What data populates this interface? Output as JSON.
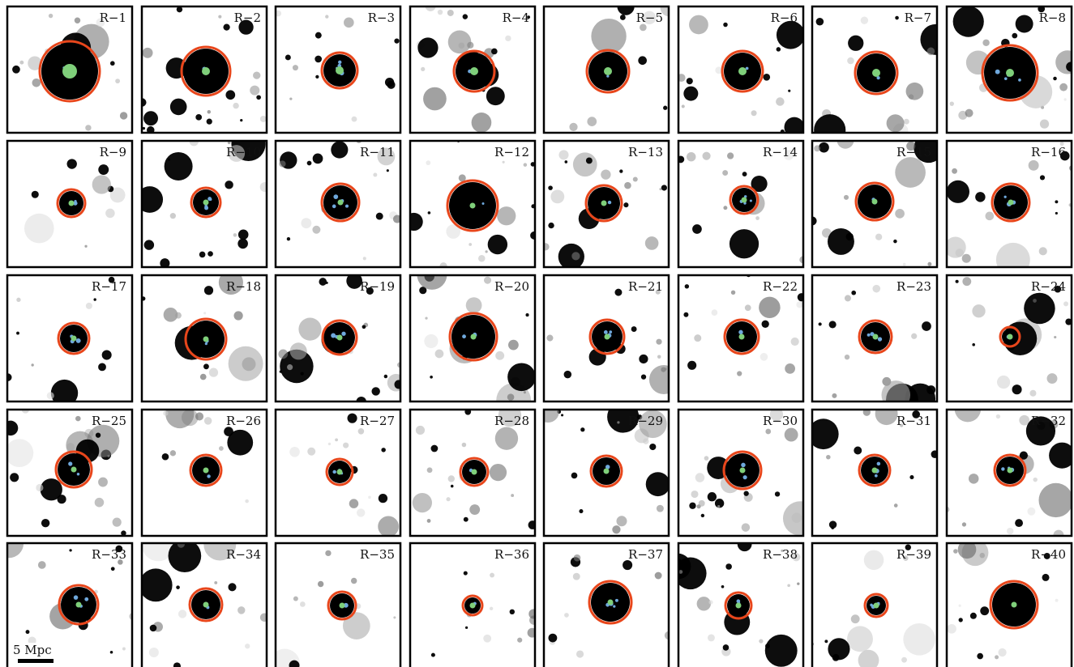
{
  "figure": {
    "panel_labels": [
      "R−1",
      "R−2",
      "R−3",
      "R−4",
      "R−5",
      "R−6",
      "R−7",
      "R−8",
      "R−9",
      "R−10",
      "R−11",
      "R−12",
      "R−13",
      "R−14",
      "R−15",
      "R−16",
      "R−17",
      "R−18",
      "R−19",
      "R−20",
      "R−21",
      "R−22",
      "R−23",
      "R−24",
      "R−25",
      "R−26",
      "R−27",
      "R−28",
      "R−29",
      "R−30",
      "R−31",
      "R−32",
      "R−33",
      "R−34",
      "R−35",
      "R−36",
      "R−37",
      "R−38",
      "R−39",
      "R−40"
    ],
    "scale_bar_label": "5 Mpc",
    "colors": {
      "ring": "#e8461b",
      "central_marker": "#7fcf7a",
      "satellite_marker": "#6fa8dc",
      "blob": "#000000",
      "panel_frame": "#000000",
      "background": "#ffffff"
    }
  }
}
